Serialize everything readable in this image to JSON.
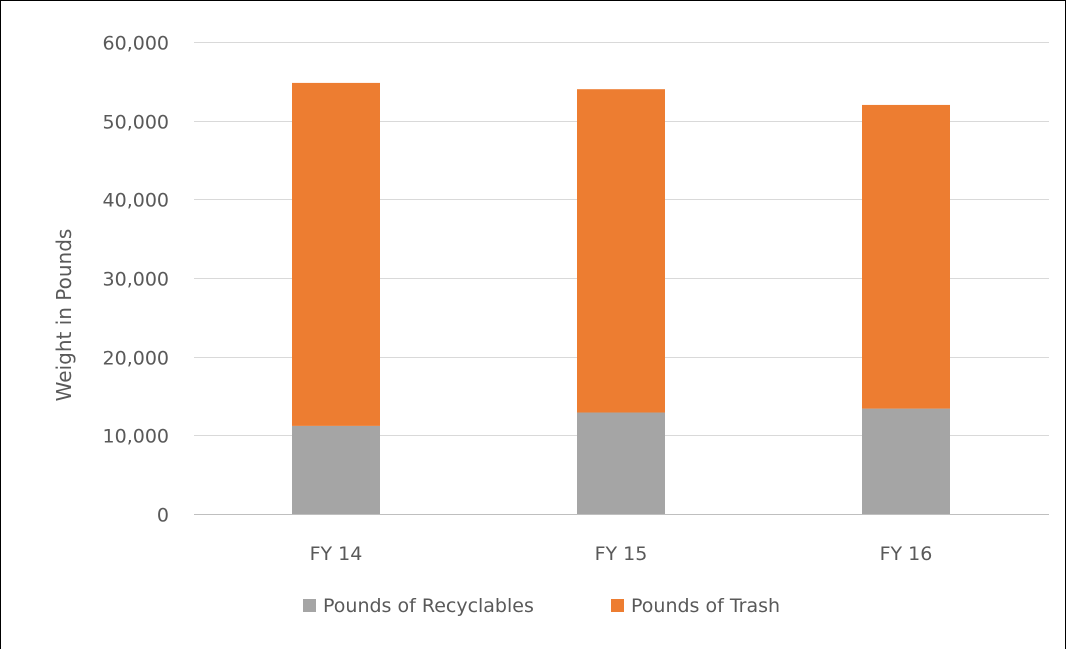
{
  "chart_data": {
    "type": "bar",
    "stacked": true,
    "categories": [
      "FY 14",
      "FY 15",
      "FY 16"
    ],
    "series": [
      {
        "name": "Pounds of Recyclables",
        "color": "#a5a5a5",
        "values": [
          11200,
          12900,
          13400
        ]
      },
      {
        "name": "Pounds of Trash",
        "color": "#ed7d31",
        "values": [
          43600,
          41100,
          38600
        ]
      }
    ],
    "title": "",
    "xlabel": "",
    "ylabel": "Weight in Pounds",
    "ylim": [
      0,
      60000
    ],
    "yticks": [
      0,
      10000,
      20000,
      30000,
      40000,
      50000,
      60000
    ],
    "ytick_labels": [
      "0",
      "10,000",
      "20,000",
      "30,000",
      "40,000",
      "50,000",
      "60,000"
    ],
    "grid": true,
    "legend_position": "bottom"
  }
}
